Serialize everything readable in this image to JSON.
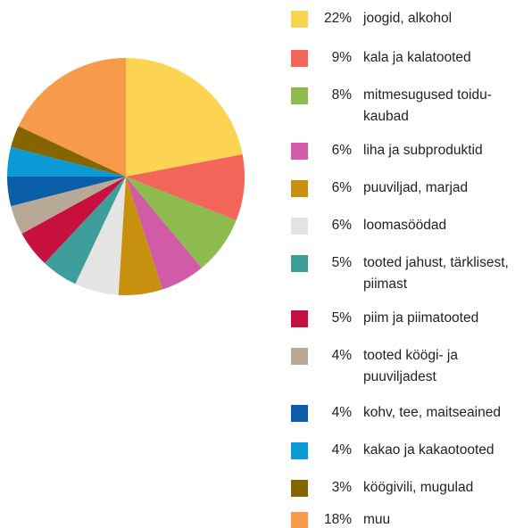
{
  "chart_data": {
    "type": "pie",
    "title": "",
    "slices": [
      {
        "percent_label": "22%",
        "label": "joogid, alkohol",
        "lines": [
          "joogid, alkohol"
        ],
        "value": 22,
        "color": "#fdd451"
      },
      {
        "percent_label": "9%",
        "label": "kala ja kalatooted",
        "lines": [
          "kala ja kalatooted"
        ],
        "value": 9,
        "color": "#f26558"
      },
      {
        "percent_label": "8%",
        "label": "mitmesugused toidu-kaubad",
        "lines": [
          "mitmesugused toidu-",
          "kaubad"
        ],
        "value": 8,
        "color": "#8ebb4e"
      },
      {
        "percent_label": "6%",
        "label": "liha ja subproduktid",
        "lines": [
          "liha ja subproduktid"
        ],
        "value": 6,
        "color": "#d25ba7"
      },
      {
        "percent_label": "6%",
        "label": "puuviljad, marjad",
        "lines": [
          "puuviljad, marjad"
        ],
        "value": 6,
        "color": "#c8900f"
      },
      {
        "percent_label": "6%",
        "label": "loomasöödad",
        "lines": [
          "loomasöödad"
        ],
        "value": 6,
        "color": "#e4e5e2"
      },
      {
        "percent_label": "5%",
        "label": "tooted jahust, tärklisest, piimast",
        "lines": [
          "tooted jahust, tärklisest,",
          "piimast"
        ],
        "value": 5,
        "color": "#3f9d9b"
      },
      {
        "percent_label": "5%",
        "label": "piim ja piimatooted",
        "lines": [
          "piim ja piimatooted"
        ],
        "value": 5,
        "color": "#c8103f"
      },
      {
        "percent_label": "4%",
        "label": "tooted köögi- ja puuviljadest",
        "lines": [
          "tooted köögi- ja",
          "puuviljadest"
        ],
        "value": 4,
        "color": "#b7a995"
      },
      {
        "percent_label": "4%",
        "label": "kohv, tee, maitseained",
        "lines": [
          "kohv, tee, maitseained"
        ],
        "value": 4,
        "color": "#0a5ea8"
      },
      {
        "percent_label": "4%",
        "label": "kakao ja kakaotooted",
        "lines": [
          "kakao ja kakaotooted"
        ],
        "value": 4,
        "color": "#0b9ad6"
      },
      {
        "percent_label": "3%",
        "label": "köögivili, mugulad",
        "lines": [
          "köögivili, mugulad"
        ],
        "value": 3,
        "color": "#856500"
      },
      {
        "percent_label": "18%",
        "label": "muu",
        "lines": [
          "muu"
        ],
        "value": 18,
        "color": "#f79a4a"
      }
    ]
  }
}
